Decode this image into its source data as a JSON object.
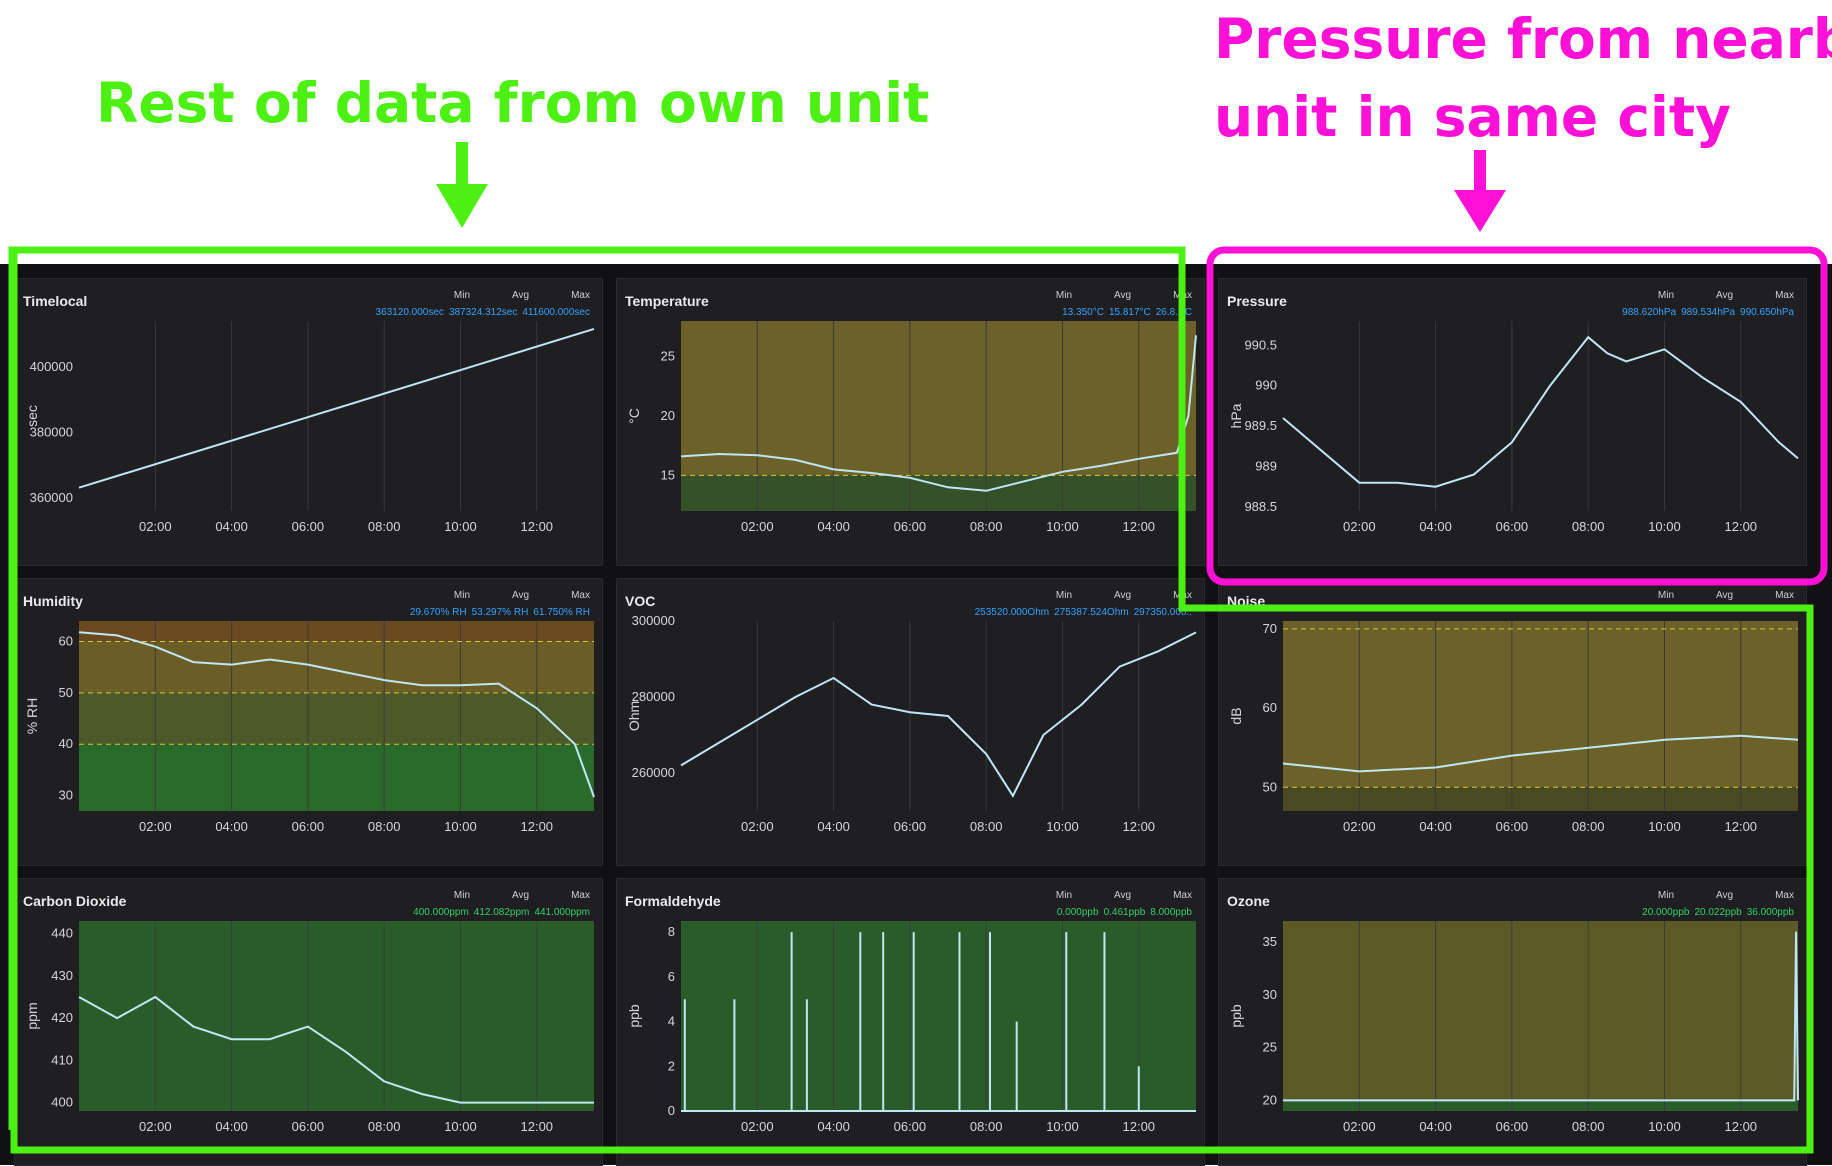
{
  "annotations": {
    "left_label": "Rest of data from own unit",
    "right_label_line1": "Pressure from nearby",
    "right_label_line2": "unit in same city",
    "green": "#4cf012",
    "pink": "#ff10d6"
  },
  "stat_heads": {
    "min": "Min",
    "avg": "Avg",
    "max": "Max"
  },
  "x_ticks": [
    "02:00",
    "04:00",
    "06:00",
    "08:00",
    "10:00",
    "12:00"
  ],
  "panels": [
    {
      "id": "timelocal",
      "title": "Timelocal",
      "unit": "sec",
      "min": "363120.000sec",
      "avg": "387324.312sec",
      "max": "411600.000sec",
      "y_ticks": [
        "400000",
        "380000",
        "360000"
      ]
    },
    {
      "id": "temperature",
      "title": "Temperature",
      "unit": "°C",
      "min": "13.350°C",
      "avg": "15.817°C",
      "max": "26.8..°C",
      "y_ticks": [
        "25",
        "20",
        "15"
      ]
    },
    {
      "id": "pressure",
      "title": "Pressure",
      "unit": "hPa",
      "min": "988.620hPa",
      "avg": "989.534hPa",
      "max": "990.650hPa",
      "y_ticks": [
        "990.5",
        "990",
        "989.5",
        "989",
        "988.5"
      ]
    },
    {
      "id": "humidity",
      "title": "Humidity",
      "unit": "% RH",
      "min": "29.670% RH",
      "avg": "53.297% RH",
      "max": "61.750% RH",
      "y_ticks": [
        "60",
        "50",
        "40",
        "30"
      ]
    },
    {
      "id": "voc",
      "title": "VOC",
      "unit": "Ohm",
      "min": "253520.000Ohm",
      "avg": "275387.524Ohm",
      "max": "297350.000..",
      "y_ticks": [
        "300000",
        "280000",
        "260000"
      ]
    },
    {
      "id": "noise",
      "title": "Noise",
      "unit": "dB",
      "min": "",
      "avg": "",
      "max": "",
      "y_ticks": [
        "70",
        "60",
        "50"
      ]
    },
    {
      "id": "co2",
      "title": "Carbon Dioxide",
      "unit": "ppm",
      "min": "400.000ppm",
      "avg": "412.082ppm",
      "max": "441.000ppm",
      "y_ticks": [
        "440",
        "430",
        "420",
        "410",
        "400"
      ]
    },
    {
      "id": "formaldehyde",
      "title": "Formaldehyde",
      "unit": "ppb",
      "min": "0.000ppb",
      "avg": "0.461ppb",
      "max": "8.000ppb",
      "y_ticks": [
        "8",
        "6",
        "4",
        "2",
        "0"
      ]
    },
    {
      "id": "ozone",
      "title": "Ozone",
      "unit": "ppb",
      "min": "20.000ppb",
      "avg": "20.022ppb",
      "max": "36.000ppb",
      "y_ticks": [
        "35",
        "30",
        "25",
        "20"
      ]
    }
  ],
  "chart_data": [
    {
      "type": "line",
      "title": "Timelocal",
      "ylabel": "sec",
      "x_range": [
        "00:00",
        "13:30"
      ],
      "ylim": [
        356000,
        414000
      ],
      "series": [
        {
          "values": [
            [
              0,
              363120
            ],
            [
              13.5,
              411600
            ]
          ]
        }
      ]
    },
    {
      "type": "line",
      "title": "Temperature",
      "ylabel": "°C",
      "ylim": [
        12,
        28
      ],
      "thresholds": [
        15
      ],
      "series": [
        {
          "values": [
            [
              0,
              16.6
            ],
            [
              1,
              16.8
            ],
            [
              2,
              16.7
            ],
            [
              3,
              16.3
            ],
            [
              4,
              15.5
            ],
            [
              5,
              15.2
            ],
            [
              6,
              14.8
            ],
            [
              7,
              14.0
            ],
            [
              8,
              13.7
            ],
            [
              9,
              14.5
            ],
            [
              10,
              15.3
            ],
            [
              11,
              15.8
            ],
            [
              12,
              16.4
            ],
            [
              13,
              16.9
            ],
            [
              13.3,
              20
            ],
            [
              13.5,
              26.8
            ]
          ]
        }
      ]
    },
    {
      "type": "line",
      "title": "Pressure",
      "ylabel": "hPa",
      "ylim": [
        988.45,
        990.8
      ],
      "series": [
        {
          "values": [
            [
              0,
              989.6
            ],
            [
              1,
              989.2
            ],
            [
              2,
              988.8
            ],
            [
              3,
              988.8
            ],
            [
              4,
              988.75
            ],
            [
              5,
              988.9
            ],
            [
              6,
              989.3
            ],
            [
              7,
              990.0
            ],
            [
              8,
              990.6
            ],
            [
              8.5,
              990.4
            ],
            [
              9,
              990.3
            ],
            [
              10,
              990.45
            ],
            [
              11,
              990.1
            ],
            [
              12,
              989.8
            ],
            [
              13,
              989.3
            ],
            [
              13.5,
              989.1
            ]
          ]
        }
      ]
    },
    {
      "type": "line",
      "title": "Humidity",
      "ylabel": "% RH",
      "ylim": [
        27,
        64
      ],
      "thresholds": [
        40,
        50,
        60
      ],
      "series": [
        {
          "values": [
            [
              0,
              61.8
            ],
            [
              1,
              61.2
            ],
            [
              2,
              59
            ],
            [
              3,
              56
            ],
            [
              4,
              55.5
            ],
            [
              5,
              56.5
            ],
            [
              6,
              55.5
            ],
            [
              7,
              54
            ],
            [
              8,
              52.5
            ],
            [
              9,
              51.5
            ],
            [
              10,
              51.5
            ],
            [
              11,
              51.8
            ],
            [
              12,
              47
            ],
            [
              13,
              40
            ],
            [
              13.5,
              29.7
            ]
          ]
        }
      ]
    },
    {
      "type": "line",
      "title": "VOC",
      "ylabel": "Ohm",
      "ylim": [
        250000,
        300000
      ],
      "series": [
        {
          "values": [
            [
              0,
              262000
            ],
            [
              1,
              268000
            ],
            [
              2,
              274000
            ],
            [
              3,
              280000
            ],
            [
              4,
              285000
            ],
            [
              5,
              278000
            ],
            [
              6,
              276000
            ],
            [
              7,
              275000
            ],
            [
              8,
              265000
            ],
            [
              8.7,
              254000
            ],
            [
              9.5,
              270000
            ],
            [
              10.5,
              278000
            ],
            [
              11.5,
              288000
            ],
            [
              12.5,
              292000
            ],
            [
              13.5,
              297000
            ]
          ]
        }
      ]
    },
    {
      "type": "line",
      "title": "Noise",
      "ylabel": "dB",
      "ylim": [
        47,
        71
      ],
      "thresholds": [
        50,
        70
      ],
      "series": [
        {
          "values": [
            [
              0,
              53
            ],
            [
              2,
              52
            ],
            [
              4,
              52.5
            ],
            [
              6,
              54
            ],
            [
              8,
              55
            ],
            [
              10,
              56
            ],
            [
              12,
              56.5
            ],
            [
              13.5,
              56
            ]
          ]
        }
      ]
    },
    {
      "type": "line",
      "title": "Carbon Dioxide",
      "ylabel": "ppm",
      "ylim": [
        398,
        443
      ],
      "series": [
        {
          "values": [
            [
              0,
              425
            ],
            [
              1,
              420
            ],
            [
              2,
              425
            ],
            [
              3,
              418
            ],
            [
              4,
              415
            ],
            [
              5,
              415
            ],
            [
              6,
              418
            ],
            [
              7,
              412
            ],
            [
              8,
              405
            ],
            [
              9,
              402
            ],
            [
              10,
              400
            ],
            [
              11,
              400
            ],
            [
              12,
              400
            ],
            [
              13.5,
              400
            ]
          ]
        }
      ]
    },
    {
      "type": "line",
      "title": "Formaldehyde",
      "ylabel": "ppb",
      "ylim": [
        0,
        8.5
      ],
      "series": [
        {
          "values": [
            [
              0,
              0
            ],
            [
              13.5,
              0
            ]
          ],
          "spikes": [
            [
              0.1,
              5
            ],
            [
              1.4,
              5
            ],
            [
              2.9,
              8
            ],
            [
              3.3,
              5
            ],
            [
              4.7,
              8
            ],
            [
              5.3,
              8
            ],
            [
              6.1,
              8
            ],
            [
              7.3,
              8
            ],
            [
              8.1,
              8
            ],
            [
              8.8,
              4
            ],
            [
              10.1,
              8
            ],
            [
              11.1,
              8
            ],
            [
              12,
              2
            ]
          ]
        }
      ]
    },
    {
      "type": "line",
      "title": "Ozone",
      "ylabel": "ppb",
      "ylim": [
        19,
        37
      ],
      "series": [
        {
          "values": [
            [
              0,
              20
            ],
            [
              13.4,
              20
            ],
            [
              13.45,
              36
            ],
            [
              13.5,
              20
            ]
          ]
        }
      ]
    }
  ]
}
